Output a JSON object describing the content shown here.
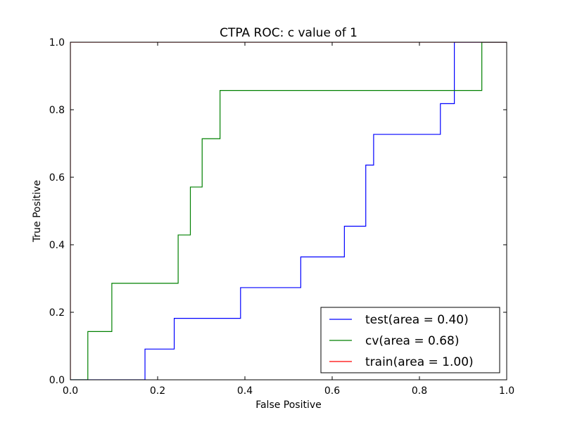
{
  "chart_data": {
    "type": "line",
    "title": "CTPA ROC: c value of 1",
    "xlabel": "False Positive",
    "ylabel": "True Positive",
    "xlim": [
      0.0,
      1.0
    ],
    "ylim": [
      0.0,
      1.0
    ],
    "xticks": [
      "0.0",
      "0.2",
      "0.4",
      "0.6",
      "0.8",
      "1.0"
    ],
    "yticks": [
      "0.0",
      "0.2",
      "0.4",
      "0.6",
      "0.8",
      "1.0"
    ],
    "grid": false,
    "legend": "bottom-right",
    "series": [
      {
        "name": "test(area = 0.40)",
        "color": "#0000ff",
        "x": [
          0.0,
          0.171,
          0.171,
          0.238,
          0.238,
          0.39,
          0.39,
          0.528,
          0.528,
          0.628,
          0.628,
          0.677,
          0.677,
          0.695,
          0.695,
          0.848,
          0.848,
          0.88,
          0.88,
          1.0
        ],
        "y": [
          0.0,
          0.0,
          0.091,
          0.091,
          0.182,
          0.182,
          0.273,
          0.273,
          0.364,
          0.364,
          0.455,
          0.455,
          0.636,
          0.636,
          0.727,
          0.727,
          0.818,
          0.818,
          1.0,
          1.0
        ]
      },
      {
        "name": "cv(area = 0.68)",
        "color": "#008000",
        "x": [
          0.0,
          0.04,
          0.04,
          0.095,
          0.095,
          0.247,
          0.247,
          0.275,
          0.275,
          0.302,
          0.302,
          0.343,
          0.343,
          0.943,
          0.943,
          1.0
        ],
        "y": [
          0.0,
          0.0,
          0.143,
          0.143,
          0.286,
          0.286,
          0.429,
          0.429,
          0.571,
          0.571,
          0.714,
          0.714,
          0.857,
          0.857,
          1.0,
          1.0
        ]
      },
      {
        "name": "train(area = 1.00)",
        "color": "#ff0000",
        "x": [
          0.0,
          0.0,
          1.0
        ],
        "y": [
          0.0,
          1.0,
          1.0
        ]
      }
    ]
  }
}
